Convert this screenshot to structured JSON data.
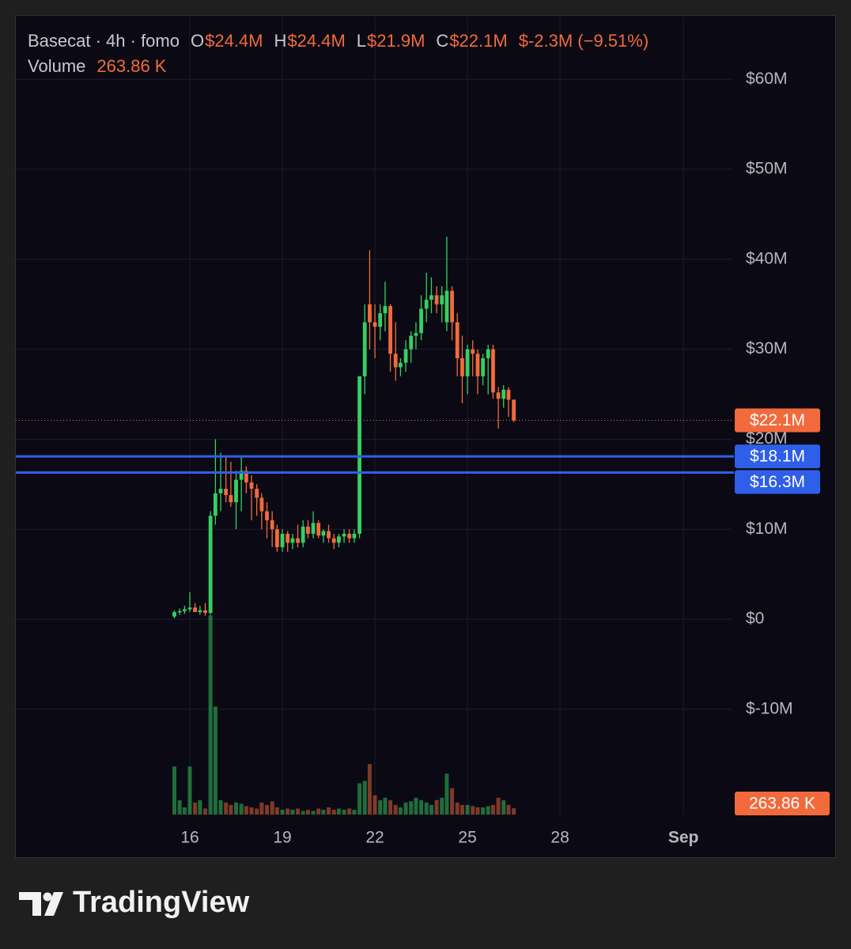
{
  "chart_data": {
    "type": "candlestick",
    "legend": {
      "symbol": "Basecat · 4h · fomo",
      "ohlc": [
        {
          "key": "O",
          "value": "$24.4M"
        },
        {
          "key": "H",
          "value": "$24.4M"
        },
        {
          "key": "L",
          "value": "$21.9M"
        },
        {
          "key": "C",
          "value": "$22.1M"
        }
      ],
      "change": "$-2.3M (−9.51%)",
      "volume_name": "Volume",
      "volume_value": "263.86 K"
    },
    "x": [
      15.5,
      15.67,
      15.83,
      16,
      16.17,
      16.33,
      16.5,
      16.67,
      16.83,
      17,
      17.17,
      17.33,
      17.5,
      17.67,
      17.83,
      18,
      18.17,
      18.33,
      18.5,
      18.67,
      18.83,
      19,
      19.17,
      19.33,
      19.5,
      19.67,
      19.83,
      20,
      20.17,
      20.33,
      20.5,
      20.67,
      20.83,
      21,
      21.17,
      21.33,
      21.5,
      21.67,
      21.83,
      22,
      22.17,
      22.33,
      22.5,
      22.67,
      22.83,
      23,
      23.17,
      23.33,
      23.5,
      23.67,
      23.83,
      24,
      24.17,
      24.33,
      24.5,
      24.67,
      24.83,
      25,
      25.17,
      25.33,
      25.5,
      25.67,
      25.83,
      26,
      26.17,
      26.33,
      26.5
    ],
    "open": [
      0.3,
      0.8,
      0.9,
      1.1,
      1.3,
      0.8,
      1.0,
      0.7,
      11.5,
      14,
      14.5,
      13.8,
      13,
      15.5,
      16.5,
      15.2,
      14.5,
      13.5,
      12,
      11,
      10,
      8,
      9.5,
      8.5,
      9,
      8.5,
      10.3,
      9.5,
      10.7,
      9.3,
      9.8,
      9.0,
      8.5,
      9.2,
      9.5,
      9,
      9.5,
      27,
      35,
      33,
      32.5,
      34,
      34.8,
      29.5,
      28,
      28.5,
      30,
      31.5,
      31.8,
      34.5,
      35.5,
      36,
      35,
      33,
      36.5,
      33,
      29,
      27,
      30,
      29.5,
      27,
      29,
      30,
      25.2,
      24.5,
      25.5,
      24.4
    ],
    "high": [
      1,
      1.2,
      1.5,
      3,
      1.8,
      1.5,
      1.8,
      12,
      20,
      18.5,
      18,
      17.5,
      16.5,
      18,
      17,
      16,
      15,
      14,
      13,
      12,
      10.5,
      10,
      9.8,
      9.5,
      10.5,
      11,
      11,
      12,
      11,
      10,
      10.5,
      9.5,
      9.5,
      10,
      10,
      10,
      27,
      35,
      41,
      35,
      35,
      37.5,
      35,
      33,
      29,
      31,
      32,
      33,
      36,
      38.5,
      38,
      37,
      37,
      42.5,
      37,
      34,
      31.5,
      30.5,
      31,
      30,
      29.5,
      30.5,
      30.5,
      25.8,
      26,
      25.8,
      24.4
    ],
    "low": [
      0.1,
      0.5,
      0.6,
      0.8,
      0.9,
      0.5,
      0.4,
      0.5,
      10.5,
      12,
      13,
      12.5,
      10,
      12,
      14,
      11,
      11.5,
      10,
      9,
      8,
      7.5,
      7.5,
      7.5,
      7.8,
      8,
      8,
      9,
      9,
      9,
      8.5,
      8.5,
      7.8,
      8,
      8.5,
      8.5,
      8.5,
      9,
      25,
      30,
      29,
      31,
      32,
      27.5,
      26.5,
      27,
      27.5,
      28.5,
      30,
      31,
      33,
      34,
      34,
      33,
      32,
      31,
      27,
      24,
      25,
      27,
      25,
      26,
      25,
      24.5,
      21.2,
      23.5,
      22.5,
      21.9
    ],
    "close": [
      0.8,
      0.9,
      1.1,
      1.3,
      0.8,
      1.0,
      0.7,
      11.5,
      14,
      14.5,
      13.8,
      13,
      15.5,
      16.5,
      15.2,
      14.5,
      13.5,
      12,
      11,
      10,
      8,
      9.5,
      8.5,
      9,
      8.5,
      10.3,
      9.5,
      10.7,
      9.3,
      9.8,
      9.0,
      8.5,
      9.2,
      9.5,
      9,
      9.5,
      27,
      33,
      33,
      32.5,
      34,
      34.8,
      29.5,
      28,
      28.5,
      30,
      31.5,
      31.8,
      34.5,
      35.5,
      36,
      35,
      36,
      36.5,
      33,
      29,
      27,
      30,
      29.5,
      27,
      29,
      30,
      25.2,
      24.5,
      25.5,
      24.4,
      22.1
    ],
    "volume": [
      2000,
      600,
      300,
      2000,
      500,
      600,
      250,
      8300,
      4500,
      600,
      500,
      400,
      500,
      450,
      350,
      300,
      250,
      500,
      400,
      550,
      300,
      200,
      250,
      200,
      250,
      150,
      200,
      150,
      250,
      200,
      300,
      200,
      250,
      200,
      250,
      200,
      1300,
      1400,
      2100,
      800,
      600,
      700,
      600,
      400,
      300,
      500,
      550,
      700,
      600,
      500,
      400,
      600,
      700,
      1700,
      1100,
      500,
      400,
      400,
      350,
      300,
      300,
      350,
      400,
      700,
      600,
      400,
      263.86
    ],
    "up_color": "#35cf62",
    "down_color": "#f26a3c",
    "ylim": [
      -21.7,
      67.05
    ],
    "yticks": [
      {
        "value": 60,
        "label": "$60M"
      },
      {
        "value": 50,
        "label": "$50M"
      },
      {
        "value": 40,
        "label": "$40M"
      },
      {
        "value": 30,
        "label": "$30M"
      },
      {
        "value": 20,
        "label": "$20M"
      },
      {
        "value": 10,
        "label": "$10M"
      },
      {
        "value": 0,
        "label": "$0"
      },
      {
        "value": -10,
        "label": "$-10M"
      }
    ],
    "xlim": [
      10.36,
      33.56
    ],
    "xticks": [
      16,
      19,
      22,
      25,
      28,
      {
        "value": 32,
        "label": "Sep"
      }
    ],
    "grid": true,
    "price_line": {
      "value": 22.1,
      "value_label": "$22.1M",
      "color": "#f26a3c"
    },
    "volume_label": "263.86 K",
    "hlines": [
      {
        "value": 18.1,
        "value_label": "$18.1M",
        "color": "#2f5fe8"
      },
      {
        "value": 16.3,
        "value_label": "$16.3M",
        "color": "#2f5fe8"
      }
    ]
  },
  "footer": {
    "brand": "TradingView"
  }
}
